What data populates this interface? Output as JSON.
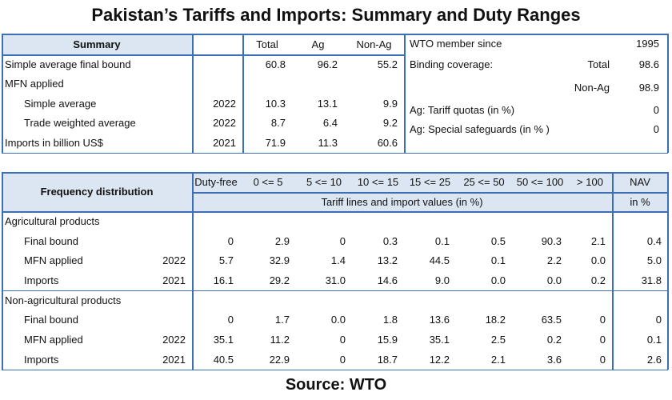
{
  "title": "Pakistan’s Tariffs and Imports: Summary and Duty Ranges",
  "source": "Source: WTO",
  "summary": {
    "label": "Summary",
    "columns": [
      "Total",
      "Ag",
      "Non-Ag"
    ],
    "rows": [
      {
        "label": "Simple average final bound",
        "values": [
          "60.8",
          "96.2",
          "55.2"
        ]
      },
      {
        "label": "MFN applied",
        "subrows": [
          {
            "label": "Simple average",
            "year": "2022",
            "values": [
              "10.3",
              "13.1",
              "9.9"
            ]
          },
          {
            "label": "Trade weighted average",
            "year": "2022",
            "values": [
              "8.7",
              "6.4",
              "9.2"
            ]
          }
        ]
      },
      {
        "label": "Imports in billion US$",
        "year": "2021",
        "values": [
          "71.9",
          "11.3",
          "60.6"
        ]
      }
    ]
  },
  "wto_info": [
    {
      "label": "WTO member since",
      "value": "1995"
    },
    {
      "label": "Binding coverage:",
      "sublabel": "Total",
      "value": "98.6"
    },
    {
      "sublabel": "Non-Ag",
      "value": "98.9"
    },
    {
      "label": "Ag: Tariff quotas  (in %)",
      "value": "0"
    },
    {
      "label": "Ag: Special safeguards (in % )",
      "value": "0"
    }
  ],
  "frequency": {
    "label": "Frequency distribution",
    "columns": [
      "Duty-free",
      "0 <= 5",
      "5 <= 10",
      "10 <= 15",
      "15 <= 25",
      "25 <= 50",
      "50 <= 100",
      "> 100"
    ],
    "subheader": "Tariff lines and import values (in %)",
    "nav": "NAV",
    "nav_unit": "in %",
    "groups": [
      {
        "label": "Agricultural products",
        "rows": [
          {
            "label": "Final bound",
            "values": [
              "0",
              "2.9",
              "0",
              "0.3",
              "0.1",
              "0.5",
              "90.3",
              "2.1"
            ],
            "nav": "0.4"
          },
          {
            "label": "MFN applied",
            "year": "2022",
            "values": [
              "5.7",
              "32.9",
              "1.4",
              "13.2",
              "44.5",
              "0.1",
              "2.2",
              "0.0"
            ],
            "nav": "5.0"
          },
          {
            "label": "Imports",
            "year": "2021",
            "values": [
              "16.1",
              "29.2",
              "31.0",
              "14.6",
              "9.0",
              "0.0",
              "0.0",
              "0.2"
            ],
            "nav": "31.8"
          }
        ]
      },
      {
        "label": "Non-agricultural products",
        "rows": [
          {
            "label": "Final bound",
            "values": [
              "0",
              "1.7",
              "0.0",
              "1.8",
              "13.6",
              "18.2",
              "63.5",
              "0"
            ],
            "nav": "0"
          },
          {
            "label": "MFN applied",
            "year": "2022",
            "values": [
              "35.1",
              "11.2",
              "0",
              "15.9",
              "35.1",
              "2.5",
              "0.2",
              "0"
            ],
            "nav": "0.1"
          },
          {
            "label": "Imports",
            "year": "2021",
            "values": [
              "40.5",
              "22.9",
              "0",
              "18.7",
              "12.2",
              "2.1",
              "3.6",
              "0"
            ],
            "nav": "2.6"
          }
        ]
      }
    ]
  }
}
